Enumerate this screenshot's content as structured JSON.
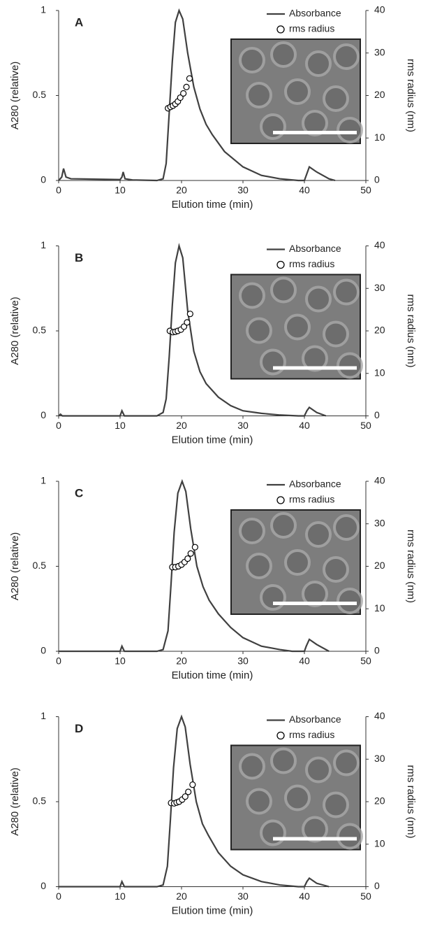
{
  "chart_data": [
    {
      "type": "line",
      "panel": "A",
      "xlabel": "Elution time (min)",
      "ylabel": "A280 (relative)",
      "y2label": "rms radius (nm)",
      "xlim": [
        0,
        50
      ],
      "xticks": [
        0,
        10,
        20,
        30,
        40,
        50
      ],
      "ylim": [
        0,
        1
      ],
      "yticks": [
        0,
        0.5,
        1
      ],
      "y2lim": [
        0,
        40
      ],
      "y2ticks": [
        0,
        10,
        20,
        30,
        40
      ],
      "series": [
        {
          "name": "Absorbance",
          "color": "#404040",
          "x": [
            0,
            0.5,
            0.8,
            1.2,
            2,
            10,
            10.3,
            10.5,
            10.8,
            12,
            16,
            17,
            17.5,
            18,
            18.5,
            19,
            19.6,
            20.2,
            21,
            22,
            23,
            24,
            25,
            27,
            30,
            33,
            36,
            39,
            40,
            40.3,
            40.8,
            42,
            44,
            45
          ],
          "values": [
            0,
            0.02,
            0.07,
            0.02,
            0.01,
            0.005,
            0.02,
            0.05,
            0.01,
            0.003,
            0,
            0.01,
            0.1,
            0.4,
            0.7,
            0.93,
            1,
            0.95,
            0.75,
            0.55,
            0.42,
            0.33,
            0.27,
            0.17,
            0.08,
            0.03,
            0.01,
            0,
            0,
            0.03,
            0.08,
            0.05,
            0.01,
            0
          ]
        },
        {
          "name": "rms radius",
          "color": "#000000",
          "axis": "y2",
          "x": [
            17.8,
            18.2,
            18.6,
            19,
            19.4,
            19.8,
            20.3,
            20.8,
            21.3
          ],
          "values": [
            17,
            17.3,
            17.6,
            18,
            18.6,
            19.5,
            20.5,
            22,
            24
          ]
        }
      ]
    },
    {
      "type": "line",
      "panel": "B",
      "xlabel": "Elution time (min)",
      "ylabel": "A280 (relative)",
      "y2label": "rms radius (nm)",
      "xlim": [
        0,
        50
      ],
      "xticks": [
        0,
        10,
        20,
        30,
        40,
        50
      ],
      "ylim": [
        0,
        1
      ],
      "yticks": [
        0,
        0.5,
        1
      ],
      "y2lim": [
        0,
        40
      ],
      "y2ticks": [
        0,
        10,
        20,
        30,
        40
      ],
      "series": [
        {
          "name": "Absorbance",
          "color": "#404040",
          "x": [
            0,
            0.3,
            0.6,
            10,
            10.3,
            10.7,
            16,
            17,
            17.5,
            18,
            18.5,
            19,
            19.6,
            20.2,
            21,
            22,
            23,
            24,
            26,
            28,
            30,
            33,
            36,
            39,
            40,
            40.4,
            40.8,
            42,
            43.5
          ],
          "values": [
            0,
            0.01,
            0,
            0,
            0.03,
            0,
            0,
            0.02,
            0.1,
            0.35,
            0.65,
            0.9,
            1,
            0.93,
            0.62,
            0.38,
            0.26,
            0.19,
            0.11,
            0.06,
            0.03,
            0.015,
            0.005,
            0,
            0,
            0.03,
            0.05,
            0.02,
            0
          ]
        },
        {
          "name": "rms radius",
          "color": "#000000",
          "axis": "y2",
          "x": [
            18.1,
            18.6,
            19,
            19.4,
            19.9,
            20.4,
            20.9,
            21.4
          ],
          "values": [
            20,
            19.7,
            19.8,
            20,
            20.3,
            21,
            22,
            24
          ]
        }
      ]
    },
    {
      "type": "line",
      "panel": "C",
      "xlabel": "Elution time (min)",
      "ylabel": "A280 (relative)",
      "y2label": "rms radius (nm)",
      "xlim": [
        0,
        50
      ],
      "xticks": [
        0,
        10,
        20,
        30,
        40,
        50
      ],
      "ylim": [
        0,
        1
      ],
      "yticks": [
        0,
        0.5,
        1
      ],
      "y2lim": [
        0,
        40
      ],
      "y2ticks": [
        0,
        10,
        20,
        30,
        40
      ],
      "series": [
        {
          "name": "Absorbance",
          "color": "#404040",
          "x": [
            0,
            10,
            10.3,
            10.7,
            16,
            17,
            17.8,
            18.3,
            18.8,
            19.4,
            20.1,
            20.7,
            21.5,
            22.5,
            23.5,
            24.5,
            26,
            28,
            30,
            33,
            36,
            38,
            40,
            40.3,
            40.8,
            42,
            44
          ],
          "values": [
            0,
            0,
            0.03,
            0,
            0,
            0.01,
            0.12,
            0.4,
            0.7,
            0.93,
            1,
            0.94,
            0.72,
            0.5,
            0.38,
            0.3,
            0.22,
            0.14,
            0.08,
            0.03,
            0.01,
            0,
            0,
            0.03,
            0.07,
            0.04,
            0
          ]
        },
        {
          "name": "rms radius",
          "color": "#000000",
          "axis": "y2",
          "x": [
            18.5,
            19,
            19.5,
            20,
            20.5,
            21,
            21.5,
            22.2
          ],
          "values": [
            19.8,
            19.8,
            20,
            20.4,
            21,
            21.8,
            23,
            24.5
          ]
        }
      ]
    },
    {
      "type": "line",
      "panel": "D",
      "xlabel": "Elution time (min)",
      "ylabel": "A280 (relative)",
      "y2label": "rms radius (nm)",
      "xlim": [
        0,
        50
      ],
      "xticks": [
        0,
        10,
        20,
        30,
        40,
        50
      ],
      "ylim": [
        0,
        1
      ],
      "yticks": [
        0,
        0.5,
        1
      ],
      "y2lim": [
        0,
        40
      ],
      "y2ticks": [
        0,
        10,
        20,
        30,
        40
      ],
      "series": [
        {
          "name": "Absorbance",
          "color": "#404040",
          "x": [
            0,
            10,
            10.3,
            10.7,
            16,
            17,
            17.7,
            18.2,
            18.7,
            19.3,
            20,
            20.6,
            21.4,
            22.4,
            23.4,
            24.4,
            26,
            28,
            30,
            33,
            36,
            39,
            40,
            40.4,
            40.8,
            42,
            44
          ],
          "values": [
            0,
            0,
            0.03,
            0,
            0,
            0.01,
            0.12,
            0.4,
            0.7,
            0.93,
            1,
            0.94,
            0.72,
            0.5,
            0.37,
            0.3,
            0.2,
            0.12,
            0.07,
            0.03,
            0.01,
            0,
            0,
            0.03,
            0.05,
            0.02,
            0
          ]
        },
        {
          "name": "rms radius",
          "color": "#000000",
          "axis": "y2",
          "x": [
            18.3,
            18.8,
            19.2,
            19.6,
            20.1,
            20.6,
            21.1,
            21.8
          ],
          "values": [
            19.7,
            19.6,
            19.8,
            20,
            20.5,
            21.2,
            22.3,
            24
          ]
        }
      ]
    }
  ]
}
